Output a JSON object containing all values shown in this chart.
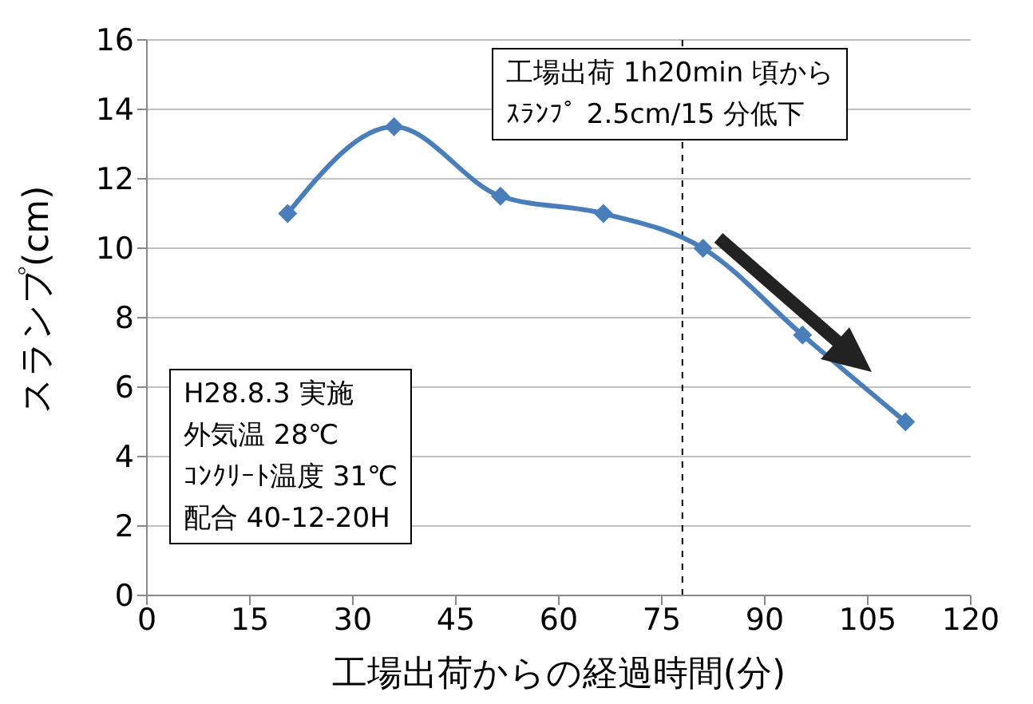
{
  "chart_data": {
    "type": "line",
    "xlabel": "工場出荷からの経過時間(分)",
    "ylabel": "スランプ(cm)",
    "x": [
      20.5,
      36,
      51.5,
      66.5,
      81,
      95.5,
      110.5
    ],
    "series": [
      {
        "color": "#4a7ebb",
        "values": [
          11,
          13.5,
          11.5,
          11,
          10,
          7.5,
          5
        ]
      }
    ],
    "xlim": [
      0,
      120
    ],
    "xticks": [
      0,
      15,
      30,
      45,
      60,
      75,
      90,
      105,
      120
    ],
    "ylim": [
      0,
      16
    ],
    "yticks": [
      0,
      2,
      4,
      6,
      8,
      10,
      12,
      14,
      16
    ],
    "grid": "y",
    "marker": "diamond",
    "line_style": "solid",
    "legend": false,
    "ref_lines": [
      {
        "axis": "x",
        "value": 78,
        "line_style": "dashed",
        "color": "#000000"
      }
    ],
    "annotations": [
      "工場出荷 1h20min 頃から",
      "ｽﾗﾝﾌﾟ 2.5cm/15 分低下",
      "H28.8.3 実施",
      "外気温 28℃",
      "ｺﾝｸﾘｰﾄ温度 31℃",
      "配合 40-12-20H"
    ]
  }
}
